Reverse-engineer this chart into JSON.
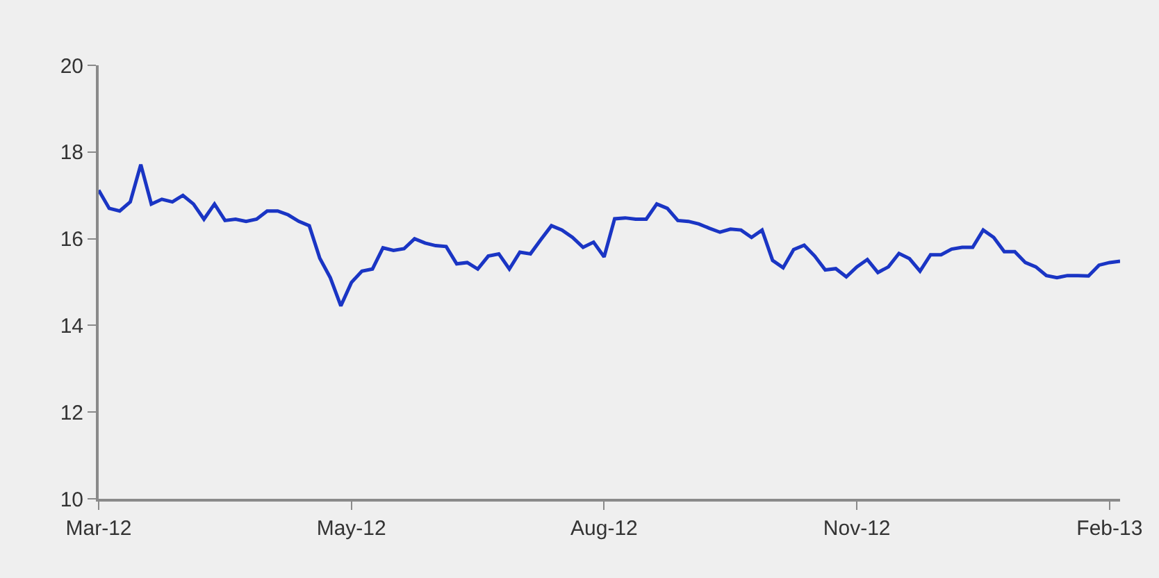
{
  "chart_data": {
    "type": "line",
    "categories": [
      "Mar-12",
      null,
      null,
      null,
      null,
      null,
      null,
      null,
      null,
      null,
      null,
      null,
      null,
      null,
      null,
      null,
      null,
      null,
      null,
      null,
      null,
      null,
      null,
      null,
      "May-12",
      null,
      null,
      null,
      null,
      null,
      null,
      null,
      null,
      null,
      null,
      null,
      null,
      null,
      null,
      null,
      null,
      null,
      null,
      null,
      null,
      null,
      null,
      null,
      "Aug-12",
      null,
      null,
      null,
      null,
      null,
      null,
      null,
      null,
      null,
      null,
      null,
      null,
      null,
      null,
      null,
      null,
      null,
      null,
      null,
      null,
      null,
      null,
      null,
      "Nov-12",
      null,
      null,
      null,
      null,
      null,
      null,
      null,
      null,
      null,
      null,
      null,
      null,
      null,
      null,
      null,
      null,
      null,
      null,
      null,
      null,
      null,
      null,
      null,
      "Feb-13",
      null
    ],
    "series": [
      {
        "color": "#1a35c4",
        "values": [
          17.12,
          16.7,
          16.64,
          16.85,
          17.71,
          16.8,
          16.91,
          16.85,
          17.0,
          16.8,
          16.45,
          16.8,
          16.42,
          16.45,
          16.4,
          16.45,
          16.64,
          16.64,
          16.55,
          16.4,
          16.3,
          15.55,
          15.1,
          14.45,
          14.99,
          15.25,
          15.3,
          15.79,
          15.73,
          15.77,
          16.0,
          15.9,
          15.84,
          15.82,
          15.42,
          15.45,
          15.3,
          15.6,
          15.65,
          15.3,
          15.69,
          15.65,
          15.98,
          16.3,
          16.2,
          16.03,
          15.8,
          15.92,
          15.58,
          16.46,
          16.48,
          16.45,
          16.45,
          16.8,
          16.7,
          16.42,
          16.4,
          16.34,
          16.24,
          16.15,
          16.22,
          16.2,
          16.03,
          16.2,
          15.5,
          15.33,
          15.75,
          15.85,
          15.6,
          15.28,
          15.31,
          15.12,
          15.35,
          15.52,
          15.22,
          15.35,
          15.66,
          15.54,
          15.25,
          15.63,
          15.63,
          15.76,
          15.8,
          15.8,
          16.2,
          16.03,
          15.7,
          15.7,
          15.45,
          15.35,
          15.15,
          15.1,
          15.15,
          15.15,
          15.14,
          15.39,
          15.45,
          15.48
        ]
      }
    ],
    "ylim": [
      10,
      20
    ],
    "yticks": [
      10,
      12,
      14,
      16,
      18,
      20
    ]
  }
}
